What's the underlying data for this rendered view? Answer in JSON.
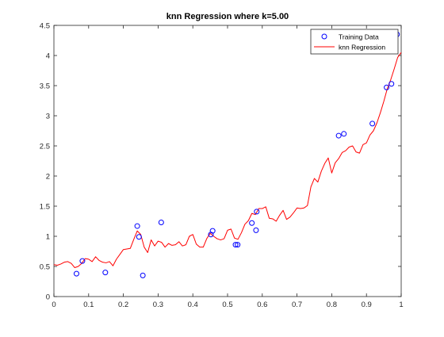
{
  "chart_data": {
    "type": "line",
    "title": "knn Regression where k=5.00",
    "xlabel": "",
    "ylabel": "",
    "xlim": [
      0,
      1
    ],
    "ylim": [
      0,
      4.5
    ],
    "x_ticks": [
      "0",
      "0.1",
      "0.2",
      "0.3",
      "0.4",
      "0.5",
      "0.6",
      "0.7",
      "0.8",
      "0.9",
      "1"
    ],
    "y_ticks": [
      "0",
      "0.5",
      "1",
      "1.5",
      "2",
      "2.5",
      "3",
      "3.5",
      "4",
      "4.5"
    ],
    "grid": false,
    "legend_position": "top-right",
    "series": [
      {
        "name": "Training Data",
        "kind": "scatter",
        "marker": "circle",
        "color": "#0000ff",
        "x": [
          0.065,
          0.082,
          0.148,
          0.24,
          0.245,
          0.256,
          0.309,
          0.452,
          0.457,
          0.523,
          0.529,
          0.57,
          0.582,
          0.584,
          0.82,
          0.835,
          0.917,
          0.958,
          0.972,
          0.988
        ],
        "y": [
          0.38,
          0.59,
          0.4,
          1.17,
          0.99,
          0.35,
          1.23,
          1.03,
          1.09,
          0.86,
          0.86,
          1.22,
          1.1,
          1.41,
          2.67,
          2.7,
          2.87,
          3.47,
          3.53,
          4.35
        ]
      },
      {
        "name": "knn Regression",
        "kind": "line",
        "color": "#ff0000",
        "x": [
          0.0,
          0.01,
          0.02,
          0.03,
          0.04,
          0.05,
          0.06,
          0.07,
          0.08,
          0.09,
          0.1,
          0.11,
          0.12,
          0.13,
          0.14,
          0.15,
          0.16,
          0.17,
          0.18,
          0.19,
          0.2,
          0.21,
          0.22,
          0.23,
          0.24,
          0.25,
          0.26,
          0.27,
          0.28,
          0.29,
          0.3,
          0.31,
          0.32,
          0.33,
          0.34,
          0.35,
          0.36,
          0.37,
          0.38,
          0.39,
          0.4,
          0.41,
          0.42,
          0.43,
          0.44,
          0.45,
          0.46,
          0.47,
          0.48,
          0.49,
          0.5,
          0.51,
          0.52,
          0.53,
          0.54,
          0.55,
          0.56,
          0.57,
          0.58,
          0.59,
          0.6,
          0.61,
          0.62,
          0.63,
          0.64,
          0.65,
          0.66,
          0.67,
          0.68,
          0.69,
          0.7,
          0.71,
          0.72,
          0.73,
          0.74,
          0.75,
          0.76,
          0.77,
          0.78,
          0.79,
          0.8,
          0.81,
          0.82,
          0.83,
          0.84,
          0.85,
          0.86,
          0.87,
          0.88,
          0.89,
          0.9,
          0.91,
          0.92,
          0.93,
          0.94,
          0.95,
          0.96,
          0.97,
          0.98,
          0.99,
          1.0
        ],
        "y": [
          0.53,
          0.52,
          0.54,
          0.57,
          0.58,
          0.55,
          0.48,
          0.5,
          0.55,
          0.63,
          0.62,
          0.58,
          0.66,
          0.6,
          0.57,
          0.56,
          0.58,
          0.51,
          0.62,
          0.7,
          0.78,
          0.79,
          0.8,
          0.95,
          1.09,
          1.03,
          0.82,
          0.73,
          0.94,
          0.84,
          0.92,
          0.9,
          0.82,
          0.88,
          0.85,
          0.86,
          0.91,
          0.84,
          0.86,
          1.0,
          1.03,
          0.87,
          0.82,
          0.82,
          0.96,
          1.05,
          1.0,
          0.96,
          0.94,
          0.96,
          1.1,
          1.12,
          0.97,
          0.95,
          1.06,
          1.2,
          1.26,
          1.38,
          1.36,
          1.46,
          1.46,
          1.49,
          1.3,
          1.29,
          1.25,
          1.35,
          1.43,
          1.28,
          1.32,
          1.39,
          1.47,
          1.46,
          1.47,
          1.51,
          1.82,
          1.96,
          1.9,
          2.08,
          2.21,
          2.3,
          2.05,
          2.22,
          2.29,
          2.39,
          2.42,
          2.48,
          2.5,
          2.4,
          2.38,
          2.52,
          2.55,
          2.68,
          2.75,
          2.88,
          3.05,
          3.24,
          3.45,
          3.6,
          3.78,
          3.97,
          4.05
        ]
      }
    ]
  }
}
